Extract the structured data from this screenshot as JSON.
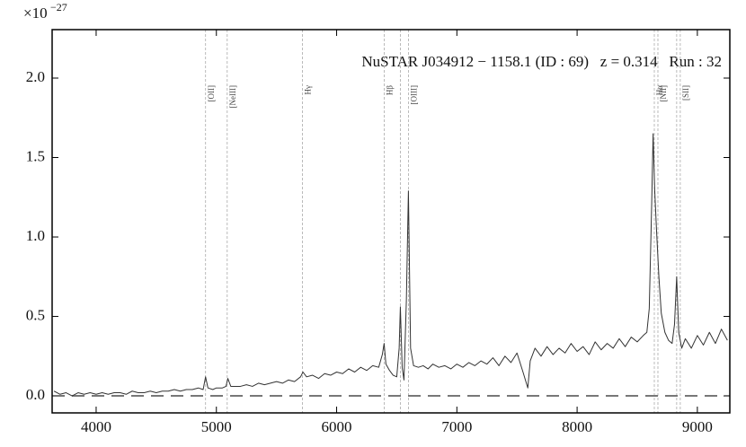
{
  "chart_data": {
    "type": "line",
    "title": "NuSTAR J034912 − 1158.1 (ID : 69)   z = 0.314   Run : 32",
    "y_multiplier": "×10",
    "y_exponent": "−27",
    "color": "#333333",
    "zero_line_color": "#777777",
    "marker_line_color": "#aaaaaa",
    "x": [
      3650,
      3700,
      3750,
      3800,
      3850,
      3900,
      3950,
      4000,
      4050,
      4100,
      4150,
      4200,
      4250,
      4300,
      4350,
      4400,
      4450,
      4500,
      4550,
      4600,
      4650,
      4700,
      4750,
      4800,
      4850,
      4890,
      4910,
      4930,
      4970,
      5000,
      5050,
      5080,
      5095,
      5120,
      5150,
      5200,
      5250,
      5300,
      5350,
      5400,
      5450,
      5500,
      5550,
      5600,
      5650,
      5700,
      5720,
      5750,
      5800,
      5850,
      5900,
      5950,
      6000,
      6050,
      6100,
      6150,
      6200,
      6250,
      6300,
      6350,
      6380,
      6395,
      6410,
      6440,
      6470,
      6500,
      6520,
      6530,
      6545,
      6560,
      6580,
      6597,
      6615,
      6640,
      6680,
      6720,
      6760,
      6800,
      6850,
      6900,
      6950,
      7000,
      7050,
      7100,
      7150,
      7200,
      7250,
      7300,
      7350,
      7400,
      7450,
      7500,
      7550,
      7590,
      7610,
      7650,
      7700,
      7750,
      7800,
      7850,
      7900,
      7950,
      8000,
      8050,
      8100,
      8150,
      8200,
      8250,
      8300,
      8350,
      8400,
      8450,
      8500,
      8550,
      8580,
      8600,
      8620,
      8632,
      8645,
      8660,
      8680,
      8700,
      8730,
      8760,
      8790,
      8810,
      8828,
      8845,
      8870,
      8900,
      8950,
      9000,
      9050,
      9100,
      9150,
      9200,
      9250
    ],
    "values": [
      0.03,
      0.01,
      0.02,
      0.0,
      0.02,
      0.01,
      0.02,
      0.01,
      0.02,
      0.01,
      0.02,
      0.02,
      0.01,
      0.03,
      0.02,
      0.02,
      0.03,
      0.02,
      0.03,
      0.03,
      0.04,
      0.03,
      0.04,
      0.04,
      0.05,
      0.04,
      0.12,
      0.05,
      0.04,
      0.05,
      0.05,
      0.06,
      0.11,
      0.06,
      0.06,
      0.06,
      0.07,
      0.06,
      0.08,
      0.07,
      0.08,
      0.09,
      0.08,
      0.1,
      0.09,
      0.12,
      0.15,
      0.12,
      0.13,
      0.11,
      0.14,
      0.13,
      0.15,
      0.14,
      0.17,
      0.15,
      0.18,
      0.16,
      0.19,
      0.18,
      0.26,
      0.33,
      0.2,
      0.16,
      0.13,
      0.12,
      0.3,
      0.56,
      0.18,
      0.1,
      0.6,
      1.29,
      0.3,
      0.19,
      0.18,
      0.19,
      0.17,
      0.2,
      0.18,
      0.19,
      0.17,
      0.2,
      0.18,
      0.21,
      0.19,
      0.22,
      0.2,
      0.24,
      0.19,
      0.25,
      0.21,
      0.27,
      0.15,
      0.05,
      0.22,
      0.3,
      0.25,
      0.31,
      0.26,
      0.3,
      0.27,
      0.33,
      0.28,
      0.31,
      0.26,
      0.34,
      0.29,
      0.33,
      0.3,
      0.36,
      0.31,
      0.37,
      0.34,
      0.38,
      0.4,
      0.55,
      1.2,
      1.65,
      1.3,
      1.05,
      0.75,
      0.52,
      0.4,
      0.35,
      0.33,
      0.45,
      0.75,
      0.4,
      0.3,
      0.36,
      0.3,
      0.38,
      0.32,
      0.4,
      0.33,
      0.42,
      0.35
    ],
    "lines": [
      {
        "label": "[OII]",
        "x": [
          4910
        ]
      },
      {
        "label": "[NeIII]",
        "x": [
          5090
        ]
      },
      {
        "label": "Hγ",
        "x": [
          5716
        ]
      },
      {
        "label": "Hβ",
        "x": [
          6396
        ]
      },
      {
        "label": "[OIII]",
        "x": [
          6530,
          6597
        ]
      },
      {
        "label": "Hα",
        "x": [
          8642
        ]
      },
      {
        "label": "[NII]",
        "x": [
          8672
        ]
      },
      {
        "label": "[SII]",
        "x": [
          8828,
          8858
        ]
      }
    ],
    "xlim": [
      3634,
      9270
    ],
    "ylim": [
      -0.107,
      2.305
    ],
    "xticks": [
      4000,
      5000,
      6000,
      7000,
      8000,
      9000
    ],
    "yticks": [
      {
        "value": 0,
        "label": "0.0"
      },
      {
        "value": 0.5,
        "label": "0.5"
      },
      {
        "value": 1,
        "label": "1.0"
      },
      {
        "value": 1.5,
        "label": "1.5"
      },
      {
        "value": 2,
        "label": "2.0"
      }
    ]
  }
}
